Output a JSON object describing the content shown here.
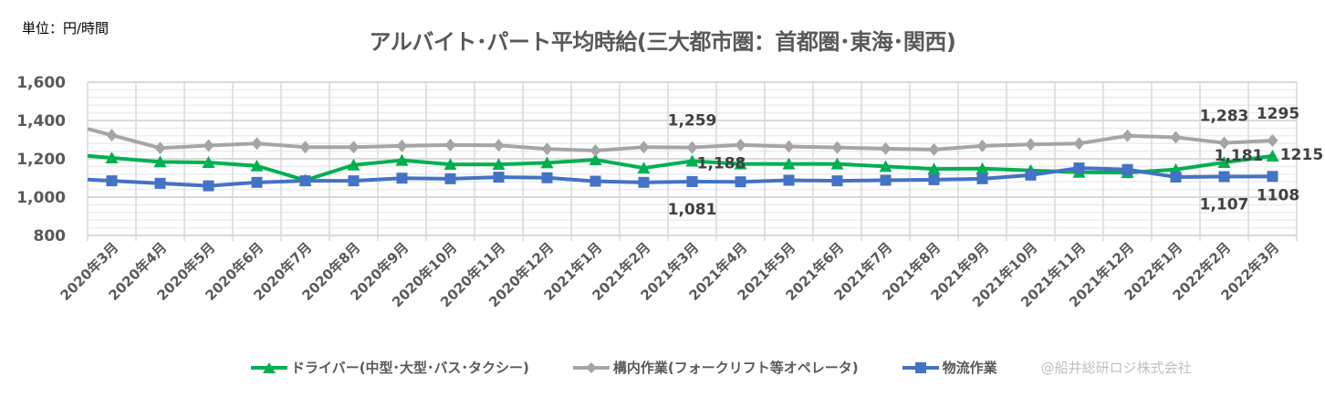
{
  "chart_data": {
    "type": "line",
    "title": "アルバイト･パート平均時給(三大都市圏：首都圏･東海･関西)",
    "unit_label": "単位：円/時間",
    "ylim": [
      800,
      1600
    ],
    "yticks": [
      "800",
      "1,000",
      "1,200",
      "1,400",
      "1,600"
    ],
    "ytick_values": [
      800,
      1000,
      1200,
      1400,
      1600
    ],
    "grid": true,
    "legend_position": "bottom",
    "categories": [
      "2020年3月",
      "2020年4月",
      "2020年5月",
      "2020年6月",
      "2020年7月",
      "2020年8月",
      "2020年9月",
      "2020年10月",
      "2020年11月",
      "2020年12月",
      "2021年1月",
      "2021年2月",
      "2021年3月",
      "2021年4月",
      "2021年5月",
      "2021年6月",
      "2021年7月",
      "2021年8月",
      "2021年9月",
      "2021年10月",
      "2021年11月",
      "2021年12月",
      "2022年1月",
      "2022年2月",
      "2022年3月"
    ],
    "series": [
      {
        "name": "ドライバー(中型･大型･バス･タクシー)",
        "color": "#00b050",
        "marker": "triangle",
        "values": [
          1205,
          1184,
          1181,
          1163,
          1088,
          1168,
          1192,
          1171,
          1171,
          1179,
          1195,
          1152,
          1188,
          1173,
          1173,
          1173,
          1160,
          1147,
          1149,
          1139,
          1130,
          1128,
          1144,
          1181,
          1215
        ],
        "data_labels": [
          {
            "index": 12,
            "text": "1,188"
          },
          {
            "index": 23,
            "text": "1,181"
          },
          {
            "index": 24,
            "text": "1215"
          }
        ]
      },
      {
        "name": "構内作業(フォークリフト等オペレータ)",
        "color": "#a5a5a5",
        "marker": "diamond",
        "values": [
          1323,
          1256,
          1269,
          1280,
          1261,
          1261,
          1267,
          1272,
          1270,
          1251,
          1243,
          1261,
          1259,
          1272,
          1264,
          1259,
          1253,
          1248,
          1267,
          1275,
          1280,
          1320,
          1312,
          1283,
          1295
        ],
        "data_labels": [
          {
            "index": 12,
            "text": "1,259"
          },
          {
            "index": 23,
            "text": "1,283"
          },
          {
            "index": 24,
            "text": "1295"
          }
        ]
      },
      {
        "name": "物流作業",
        "color": "#4472c4",
        "marker": "square",
        "values": [
          1085,
          1072,
          1059,
          1077,
          1085,
          1085,
          1099,
          1096,
          1104,
          1101,
          1083,
          1077,
          1081,
          1080,
          1088,
          1085,
          1088,
          1091,
          1096,
          1115,
          1152,
          1144,
          1105,
          1107,
          1108
        ],
        "data_labels": [
          {
            "index": 12,
            "text": "1,081"
          },
          {
            "index": 23,
            "text": "1,107"
          },
          {
            "index": 24,
            "text": "1108"
          }
        ]
      }
    ]
  },
  "credit": "@船井総研ロジ株式会社"
}
